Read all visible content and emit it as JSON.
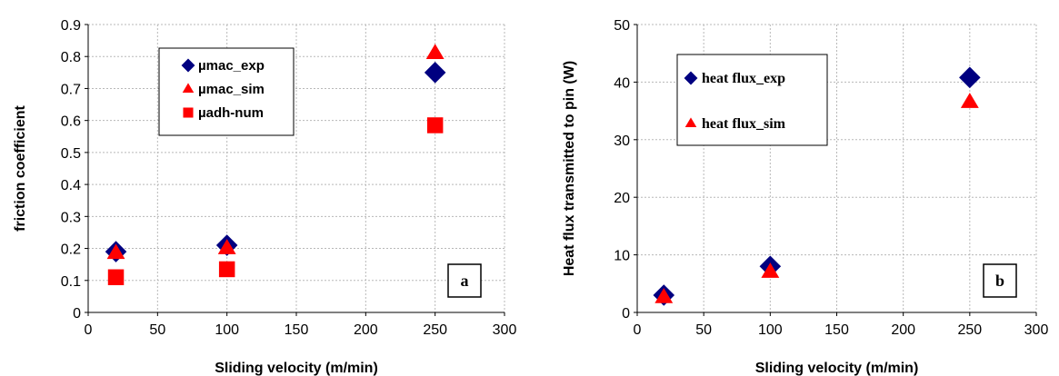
{
  "colors": {
    "navy": "#000080",
    "red": "#ff0000",
    "grid": "#b8b8b8"
  },
  "chart_data": [
    {
      "type": "scatter",
      "panel_label": "a",
      "xlabel": "Sliding velocity (m/min)",
      "ylabel": "friction coefficient",
      "xlim": [
        0,
        300
      ],
      "ylim": [
        0,
        0.9
      ],
      "xticks": [
        "0",
        "50",
        "100",
        "150",
        "200",
        "250",
        "300"
      ],
      "yticks": [
        "0",
        "0.1",
        "0.2",
        "0.3",
        "0.4",
        "0.5",
        "0.6",
        "0.7",
        "0.8",
        "0.9"
      ],
      "grid": true,
      "legend_position": "top-center",
      "series": [
        {
          "name": "µmac_exp",
          "marker": "diamond",
          "color": "#000080",
          "points": [
            [
              20,
              0.19
            ],
            [
              100,
              0.21
            ],
            [
              250,
              0.75
            ]
          ]
        },
        {
          "name": "µmac_sim",
          "marker": "triangle",
          "color": "#ff0000",
          "points": [
            [
              20,
              0.185
            ],
            [
              100,
              0.2
            ],
            [
              250,
              0.81
            ]
          ]
        },
        {
          "name": "µadh-num",
          "marker": "square",
          "color": "#ff0000",
          "points": [
            [
              20,
              0.11
            ],
            [
              100,
              0.135
            ],
            [
              250,
              0.585
            ]
          ]
        }
      ]
    },
    {
      "type": "scatter",
      "panel_label": "b",
      "xlabel": "Sliding velocity (m/min)",
      "ylabel": "Heat flux transmitted to pin (W)",
      "xlim": [
        0,
        300
      ],
      "ylim": [
        0,
        50
      ],
      "xticks": [
        "0",
        "50",
        "100",
        "150",
        "200",
        "250",
        "300"
      ],
      "yticks": [
        "0",
        "10",
        "20",
        "30",
        "40",
        "50"
      ],
      "grid": true,
      "legend_position": "top-left",
      "series": [
        {
          "name": "heat flux_exp",
          "marker": "diamond",
          "color": "#000080",
          "points": [
            [
              20,
              3
            ],
            [
              100,
              8
            ],
            [
              250,
              40.8
            ]
          ]
        },
        {
          "name": "heat flux_sim",
          "marker": "triangle",
          "color": "#ff0000",
          "points": [
            [
              20,
              2.6
            ],
            [
              100,
              7
            ],
            [
              250,
              36.5
            ]
          ]
        }
      ]
    }
  ]
}
